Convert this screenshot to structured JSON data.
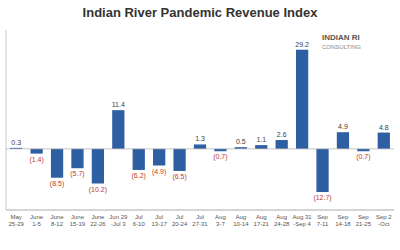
{
  "chart_data": {
    "type": "bar",
    "title": "Indian River Pandemic Revenue Index",
    "categories": [
      "May\n25-29",
      "June\n1-5",
      "June\n8-12",
      "June\n15-19",
      "June\n22-26",
      "Jun 29\n-Jul 3",
      "Jul\n6-10",
      "Jul\n13-17",
      "Jul\n20-24",
      "Jul\n27-31",
      "Aug\n3-7",
      "Aug\n10-14",
      "Aug\n17-21",
      "Aug\n24-28",
      "Aug 31\n-Sep 4",
      "Sep\n7-11",
      "Sep\n14-18",
      "Sep\n21-25",
      "Sep 2\n-Oct"
    ],
    "values": [
      0.3,
      -1.4,
      -8.5,
      -5.7,
      -10.2,
      11.4,
      -6.2,
      -4.9,
      -6.5,
      1.3,
      -0.7,
      0.5,
      1.1,
      2.6,
      29.2,
      -12.7,
      4.9,
      -0.7,
      4.8
    ],
    "value_labels": [
      "0.3",
      "(1.4)",
      "(8.5)",
      "(5.7)",
      "(10.2)",
      "11.4",
      "(6.2)",
      "(4.9)",
      "(6.5)",
      "1.3",
      "(0.7)",
      "0.5",
      "1.1",
      "2.6",
      "29.2",
      "(12.7)",
      "4.9",
      "(0.7)",
      "4.8"
    ],
    "data_labels": true,
    "color": "#2E5FA3",
    "ylim": [
      -18,
      35
    ],
    "tick_labels": "x",
    "annotations": [
      "INDIAN RI",
      "CONSULTING"
    ]
  }
}
